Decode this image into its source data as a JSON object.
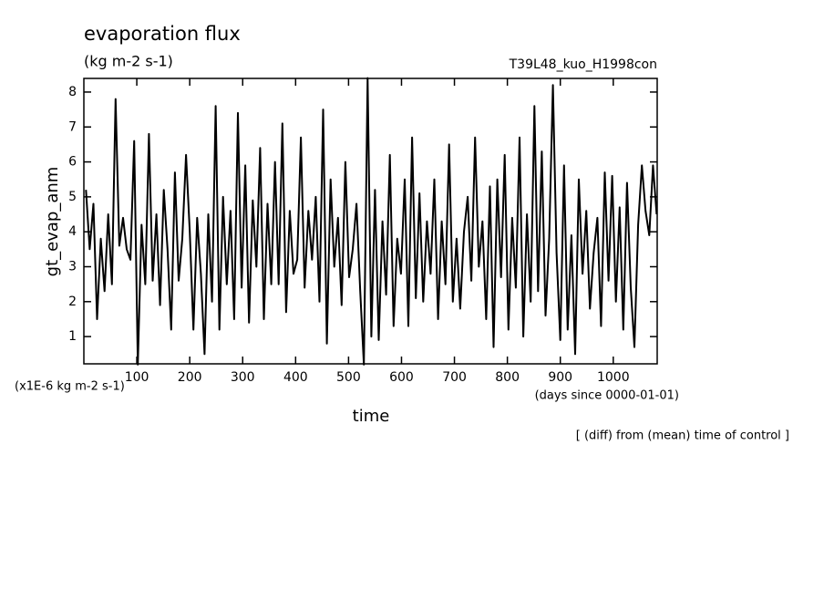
{
  "chart_data": {
    "type": "line",
    "title": "evaporation flux",
    "subtitle": "(kg m-2 s-1)",
    "annotation": "T39L48_kuo_H1998con",
    "y_label": "gt_evap_anm",
    "y_unit": "(x1E-6 kg m-2 s-1)",
    "x_unit": "(days since 0000-01-01)",
    "x_label": "time",
    "note": "[ (diff) from (mean) time of control ]",
    "xlim": [
      0,
      1083
    ],
    "ylim": [
      0.22,
      8.39
    ],
    "xticks": [
      100,
      200,
      300,
      400,
      500,
      600,
      700,
      800,
      900,
      1000
    ],
    "yticks": [
      1,
      2,
      3,
      4,
      5,
      6,
      7,
      8
    ],
    "color": "#000000",
    "x": [
      4,
      11,
      18,
      25,
      32,
      39,
      46,
      53,
      60,
      67,
      74,
      81,
      88,
      95,
      102,
      109,
      116,
      123,
      130,
      137,
      144,
      151,
      158,
      165,
      172,
      179,
      186,
      193,
      200,
      207,
      214,
      221,
      228,
      235,
      242,
      249,
      256,
      263,
      270,
      277,
      284,
      291,
      298,
      305,
      312,
      319,
      326,
      333,
      340,
      347,
      354,
      361,
      368,
      375,
      382,
      389,
      396,
      403,
      410,
      417,
      424,
      431,
      438,
      445,
      452,
      459,
      466,
      473,
      480,
      487,
      494,
      501,
      508,
      515,
      522,
      529,
      536,
      543,
      550,
      557,
      564,
      571,
      578,
      585,
      592,
      599,
      606,
      613,
      620,
      627,
      634,
      641,
      648,
      655,
      662,
      669,
      676,
      683,
      690,
      697,
      704,
      711,
      718,
      725,
      732,
      739,
      746,
      753,
      760,
      767,
      774,
      781,
      788,
      795,
      802,
      809,
      816,
      823,
      830,
      837,
      844,
      851,
      858,
      865,
      872,
      879,
      886,
      893,
      900,
      907,
      914,
      921,
      928,
      935,
      942,
      949,
      956,
      963,
      970,
      977,
      984,
      991,
      998,
      1005,
      1012,
      1019,
      1026,
      1033,
      1040,
      1047,
      1054,
      1061,
      1068,
      1075,
      1082
    ],
    "values": [
      5.2,
      3.5,
      4.8,
      1.5,
      3.8,
      2.3,
      4.5,
      2.5,
      7.8,
      3.6,
      4.4,
      3.5,
      3.2,
      6.6,
      0.2,
      4.2,
      2.5,
      6.8,
      2.6,
      4.5,
      1.9,
      5.2,
      3.5,
      1.2,
      5.7,
      2.6,
      3.8,
      6.2,
      4.0,
      1.2,
      4.4,
      2.8,
      0.5,
      4.5,
      2.0,
      7.6,
      1.2,
      5.0,
      2.5,
      4.6,
      1.5,
      7.4,
      2.4,
      5.9,
      1.4,
      4.9,
      3.0,
      6.4,
      1.5,
      4.8,
      2.5,
      6.0,
      2.5,
      7.1,
      1.7,
      4.6,
      2.8,
      3.2,
      6.7,
      2.4,
      4.6,
      3.2,
      5.0,
      2.0,
      7.5,
      0.8,
      5.5,
      3.0,
      4.4,
      1.9,
      6.0,
      2.7,
      3.5,
      4.8,
      2.3,
      0.2,
      8.4,
      1.0,
      5.2,
      0.9,
      4.3,
      2.2,
      6.2,
      1.3,
      3.8,
      2.8,
      5.5,
      1.3,
      6.7,
      2.1,
      5.1,
      2.0,
      4.3,
      2.8,
      5.5,
      1.5,
      4.3,
      2.5,
      6.5,
      2.0,
      3.8,
      1.8,
      4.0,
      5.0,
      2.6,
      6.7,
      3.0,
      4.3,
      1.5,
      5.3,
      0.7,
      5.5,
      2.7,
      6.2,
      1.2,
      4.4,
      2.4,
      6.7,
      1.0,
      4.5,
      2.0,
      7.6,
      2.3,
      6.3,
      1.6,
      3.8,
      8.2,
      3.4,
      0.9,
      5.9,
      1.2,
      3.9,
      0.5,
      5.5,
      2.8,
      4.6,
      1.8,
      3.4,
      4.4,
      1.3,
      5.7,
      2.6,
      5.6,
      2.0,
      4.7,
      1.2,
      5.4,
      2.4,
      0.7,
      4.2,
      5.9,
      4.6,
      3.9,
      5.9,
      4.5
    ]
  }
}
